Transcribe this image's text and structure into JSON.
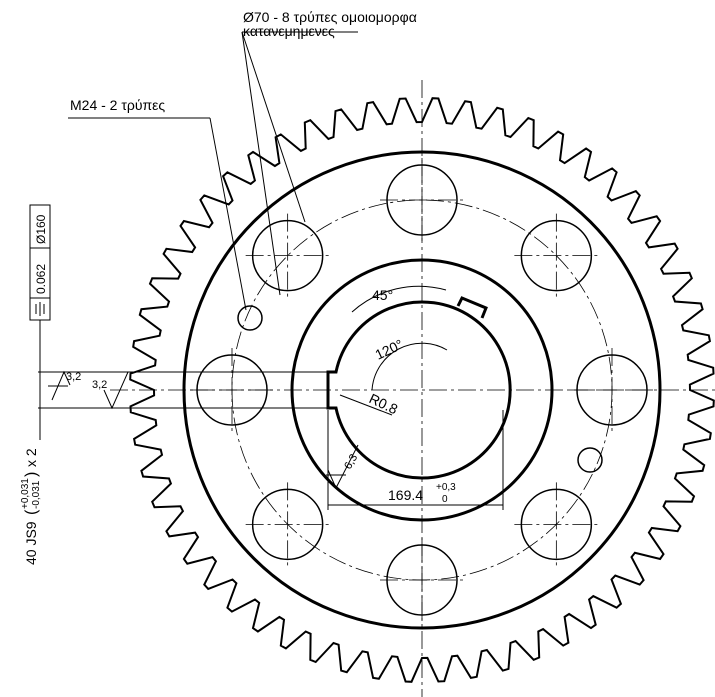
{
  "hole_note": [
    "Ø70 - 8 τρύπες ομοιομορφα",
    "κατανεμημενες"
  ],
  "thread_note": "M24 - 2 τρύπες",
  "angle_keys": "45°",
  "angle_bore": "120°",
  "radius_note": "R0.8",
  "bore_dimension": {
    "value": "169.4",
    "upper": "+0,3",
    "lower": "0"
  },
  "roughness": [
    "6,3",
    "3,2",
    "3,2"
  ],
  "key_width": {
    "value": "40 JS9",
    "upper": "+0,031",
    "lower": "-0,031",
    "count": "x 2"
  },
  "symmetry": {
    "tolerance": "0.062",
    "datum": "Ø160"
  }
}
